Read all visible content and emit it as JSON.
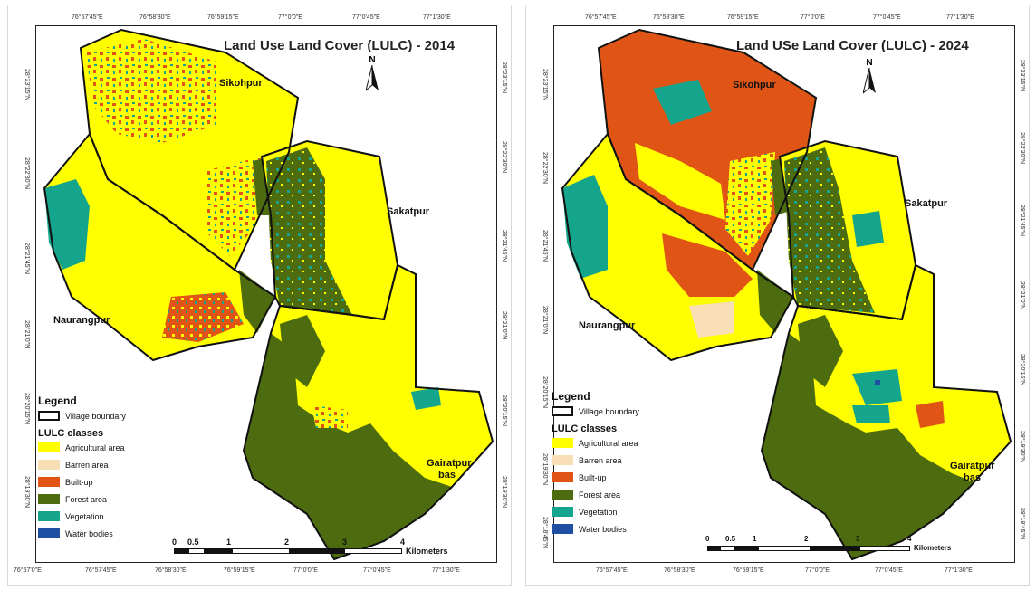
{
  "colors": {
    "agricultural": "#ffff00",
    "barren": "#f7deb4",
    "builtup": "#e05516",
    "forest": "#4d6b0f",
    "vegetation": "#14a58c",
    "water": "#1f4fa3",
    "boundary": "#111111"
  },
  "maps": [
    {
      "title": "Land Use Land Cover (LULC) - 2014",
      "top_ticks": [
        "76°57'45\"E",
        "76°58'30\"E",
        "76°59'15\"E",
        "77°0'0\"E",
        "77°0'45\"E",
        "77°1'30\"E"
      ],
      "bottom_ticks": [
        "76°57'0\"E",
        "76°57'45\"E",
        "76°58'30\"E",
        "76°59'15\"E",
        "77°0'0\"E",
        "77°0'45\"E",
        "77°1'30\"E"
      ],
      "left_ticks": [
        "28°23'15\"N",
        "28°22'30\"N",
        "28°21'45\"N",
        "28°21'0\"N",
        "28°20'15\"N",
        "28°19'30\"N"
      ],
      "right_ticks": [
        "28°23'15\"N",
        "28°22'30\"N",
        "28°21'45\"N",
        "28°21'0\"N",
        "28°20'15\"N",
        "28°19'30\"N"
      ],
      "villages": [
        "Sikohpur",
        "Sakatpur",
        "Naurangpur",
        "Gairatpur",
        "bas"
      ],
      "scale_labels": [
        "0",
        "0.5",
        "1",
        "2",
        "3",
        "4"
      ],
      "scale_unit": "Kilometers"
    },
    {
      "title": "Land USe Land Cover (LULC) - 2024",
      "top_ticks": [
        "76°57'45\"E",
        "76°58'30\"E",
        "76°59'15\"E",
        "77°0'0\"E",
        "77°0'45\"E",
        "77°1'30\"E"
      ],
      "bottom_ticks": [
        "76°57'45\"E",
        "76°58'30\"E",
        "76°59'15\"E",
        "77°0'0\"E",
        "77°0'45\"E",
        "77°1'30\"E"
      ],
      "left_ticks": [
        "28°23'15\"N",
        "28°22'30\"N",
        "28°21'45\"N",
        "28°21'0\"N",
        "28°20'15\"N",
        "28°19'30\"N",
        "28°18'45\"N"
      ],
      "right_ticks": [
        "28°23'15\"N",
        "28°22'30\"N",
        "28°21'45\"N",
        "28°21'0\"N",
        "28°20'15\"N",
        "28°19'30\"N",
        "28°18'45\"N"
      ],
      "villages": [
        "Sikohpur",
        "Sakatpur",
        "Naurangpur",
        "Gairatpur",
        "bas"
      ],
      "scale_labels": [
        "0",
        "0.5",
        "1",
        "2",
        "3",
        "4"
      ],
      "scale_unit": "Kilometers"
    }
  ],
  "legend": {
    "title": "Legend",
    "boundary_label": "Village boundary",
    "classes_title": "LULC classes",
    "classes": [
      "Agricultural area",
      "Barren area",
      "Built-up",
      "Forest area",
      "Vegetation",
      "Water bodies"
    ]
  },
  "north_label": "N"
}
